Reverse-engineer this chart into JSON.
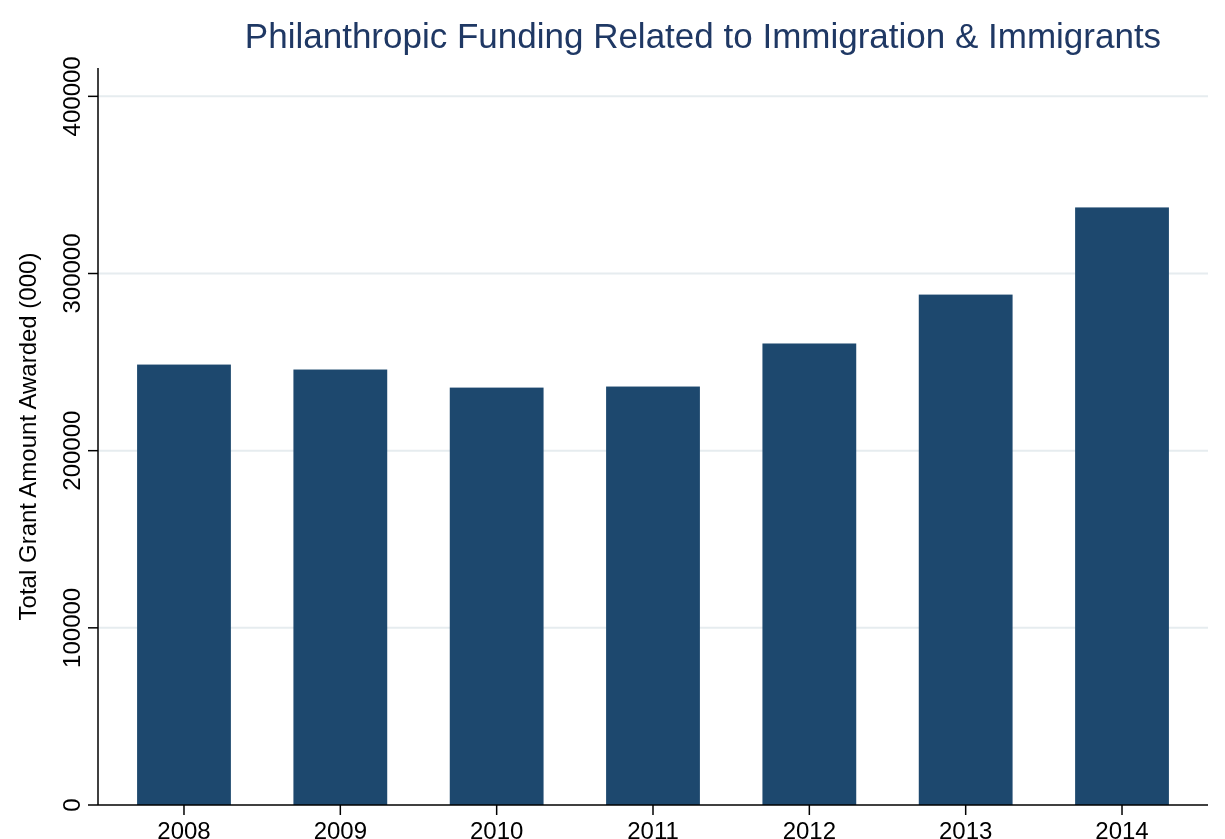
{
  "chart_data": {
    "type": "bar",
    "title": "Philanthropic Funding Related to Immigration & Immigrants",
    "ylabel": "Total Grant Amount Awarded (000)",
    "categories": [
      "2008",
      "2009",
      "2010",
      "2011",
      "2012",
      "2013",
      "2014"
    ],
    "values": [
      248600,
      245800,
      235600,
      236200,
      260500,
      288100,
      337300
    ],
    "color": "#1d486e",
    "ylim": [
      0,
      416000
    ],
    "yticks": [
      0,
      100000,
      200000,
      300000,
      400000
    ],
    "grid": "y"
  }
}
